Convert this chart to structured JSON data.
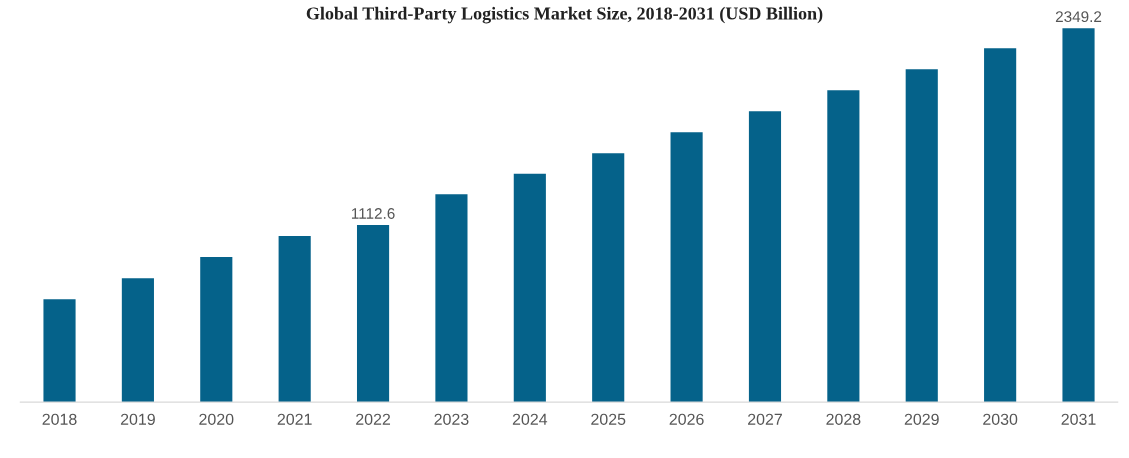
{
  "chart_data": {
    "type": "bar",
    "title": "Global Third-Party Logistics Market Size, 2018-2031 (USD Billion)",
    "categories": [
      "2018",
      "2019",
      "2020",
      "2021",
      "2022",
      "2023",
      "2024",
      "2025",
      "2026",
      "2027",
      "2028",
      "2029",
      "2030",
      "2031"
    ],
    "values": [
      647,
      779,
      911,
      1043,
      1112.6,
      1306,
      1435,
      1564,
      1696,
      1828,
      1960,
      2092,
      2223,
      2349.2
    ],
    "value_labels": [
      null,
      null,
      null,
      null,
      "1112.6",
      null,
      null,
      null,
      null,
      null,
      null,
      null,
      null,
      "2349.2"
    ],
    "color": "#05628a",
    "tick_labels": "x",
    "grid": false,
    "legend": false
  }
}
